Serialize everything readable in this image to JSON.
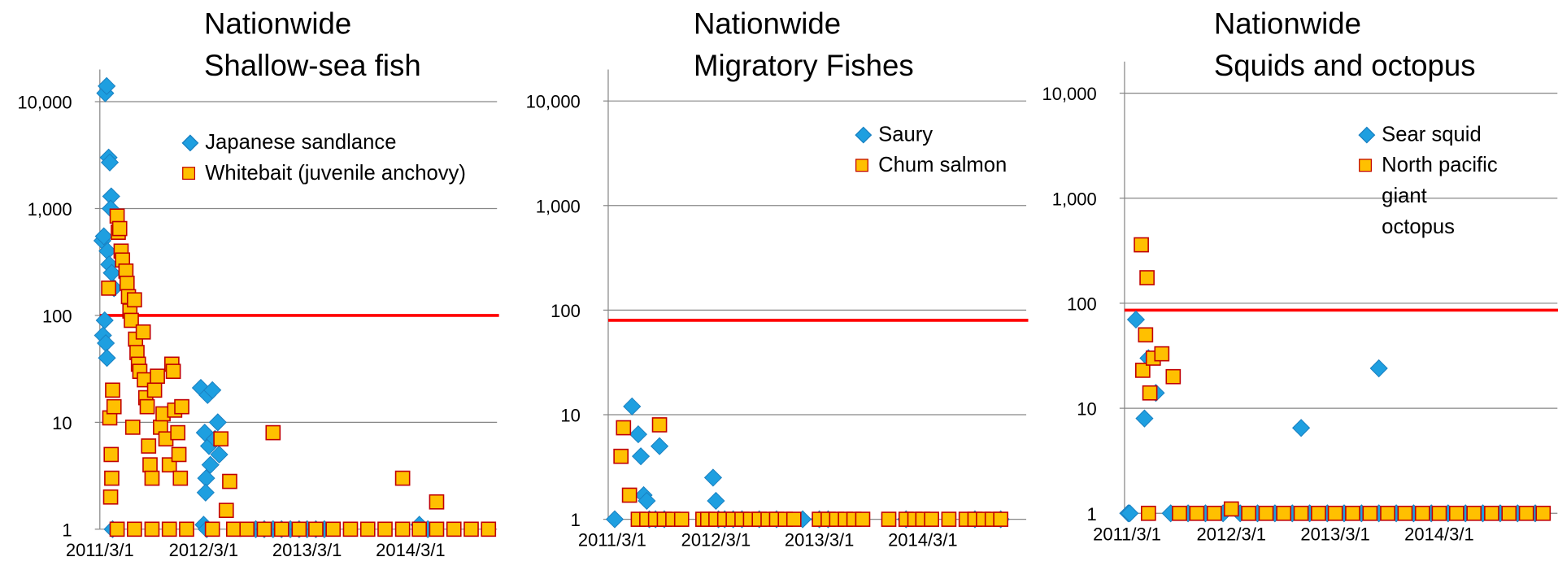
{
  "chart_data": [
    {
      "type": "scatter",
      "title": [
        "Nationwide",
        "Shallow-sea fish"
      ],
      "log_y": true,
      "grid": true,
      "legend": "upper right",
      "ylim": [
        1,
        20000
      ],
      "yticks": [
        1,
        10,
        100,
        {
          "value": 1000,
          "label": "1,000"
        },
        {
          "value": 10000,
          "label": "10,000"
        }
      ],
      "xlim": [
        "2011/3/1",
        "2014/12/31"
      ],
      "xticks": [
        "2011/3/1",
        "2012/3/1",
        "2013/3/1",
        "2014/3/1"
      ],
      "hline": {
        "value": 100,
        "color": "#ff0000"
      },
      "series": [
        {
          "name": "Japanese sandlance",
          "marker": "diamond",
          "color": "#1e9fe0",
          "x": [
            "2011/3/20",
            "2011/3/25",
            "2011/4/1",
            "2011/4/5",
            "2011/4/10",
            "2011/4/8",
            "2011/3/10",
            "2011/3/15",
            "2011/3/28",
            "2011/4/3",
            "2011/4/12",
            "2011/4/20",
            "2011/3/18",
            "2011/3/12",
            "2011/3/22",
            "2011/3/26",
            "2011/4/15",
            "2012/2/20",
            "2012/3/5",
            "2012/3/15",
            "2012/3/20",
            "2012/3/25",
            "2012/3/10",
            "2012/3/8",
            "2012/4/1",
            "2012/4/10",
            "2012/4/20",
            "2012/4/25",
            "2012/3/1",
            "2012/3/12",
            "2012/9/1",
            "2012/10/1",
            "2012/11/1",
            "2012/12/1",
            "2013/1/1",
            "2013/2/1",
            "2013/3/1",
            "2013/4/1",
            "2013/5/1",
            "2014/4/1",
            "2014/5/1"
          ],
          "values": [
            12000,
            14000,
            3000,
            2700,
            1300,
            1000,
            500,
            550,
            400,
            300,
            250,
            180,
            90,
            65,
            55,
            40,
            1,
            21,
            8,
            18,
            6,
            4,
            3,
            2.2,
            20,
            7,
            10,
            5,
            1.1,
            1,
            1,
            1,
            1,
            1,
            1,
            1,
            1,
            1,
            1,
            1.1,
            1
          ]
        },
        {
          "name": "Whitebait (juvenile anchovy)",
          "marker": "square",
          "color": "#ffc000",
          "edge": "#c00000",
          "x": [
            "2011/4/1",
            "2011/4/5",
            "2011/4/10",
            "2011/4/12",
            "2011/4/8",
            "2011/4/15",
            "2011/4/20",
            "2011/5/1",
            "2011/5/5",
            "2011/5/10",
            "2011/5/15",
            "2011/5/20",
            "2011/6/1",
            "2011/6/5",
            "2011/6/10",
            "2011/6/15",
            "2011/6/20",
            "2011/7/1",
            "2011/7/5",
            "2011/7/10",
            "2011/7/15",
            "2011/7/20",
            "2011/6/25",
            "2011/8/1",
            "2011/8/5",
            "2011/8/10",
            "2011/8/15",
            "2011/8/20",
            "2011/8/25",
            "2011/9/1",
            "2011/9/10",
            "2011/9/20",
            "2011/10/1",
            "2011/10/10",
            "2011/10/20",
            "2011/11/1",
            "2011/11/10",
            "2011/11/15",
            "2011/11/20",
            "2011/12/1",
            "2011/12/5",
            "2011/12/10",
            "2011/12/15",
            "2012/5/1",
            "2012/5/20",
            "2012/6/1",
            "2012/11/1",
            "2014/2/1",
            "2014/6/1",
            "2011/5/1",
            "2011/7/1",
            "2011/9/1",
            "2011/11/1",
            "2012/1/1",
            "2012/4/1",
            "2012/6/15",
            "2012/8/1",
            "2012/10/1",
            "2012/12/1",
            "2013/2/1",
            "2013/4/1",
            "2013/6/1",
            "2013/8/1",
            "2013/10/1",
            "2013/12/1",
            "2014/2/1",
            "2014/4/1",
            "2014/6/1",
            "2014/8/1",
            "2014/10/1",
            "2014/12/1"
          ],
          "values": [
            180,
            11,
            5,
            3,
            2,
            20,
            14,
            850,
            600,
            650,
            400,
            330,
            260,
            200,
            150,
            110,
            90,
            140,
            60,
            45,
            35,
            30,
            9,
            70,
            25,
            17,
            14,
            6,
            4,
            3,
            20,
            27,
            9,
            12,
            7,
            4,
            35,
            30,
            13,
            8,
            5,
            3,
            14,
            7,
            1.5,
            2.8,
            8,
            3,
            1.8,
            1,
            1,
            1,
            1,
            1,
            1,
            1,
            1,
            1,
            1,
            1,
            1,
            1,
            1,
            1,
            1,
            1,
            1,
            1,
            1,
            1,
            1
          ]
        }
      ]
    },
    {
      "type": "scatter",
      "title": [
        "Nationwide",
        "Migratory Fishes"
      ],
      "log_y": true,
      "grid": true,
      "legend": "upper right",
      "ylim": [
        1,
        20000
      ],
      "yticks": [
        1,
        10,
        100,
        {
          "value": 1000,
          "label": "1,000"
        },
        {
          "value": 10000,
          "label": "10,000"
        }
      ],
      "xlim": [
        "2011/2/15",
        "2015/3/1"
      ],
      "xticks": [
        "2011/3/1",
        "2012/3/1",
        "2013/3/1",
        "2014/3/1"
      ],
      "hline": {
        "value": 80,
        "color": "#ff0000"
      },
      "series": [
        {
          "name": "Saury",
          "marker": "diamond",
          "color": "#1e9fe0",
          "x": [
            "2011/3/10",
            "2011/5/10",
            "2011/6/1",
            "2011/6/10",
            "2011/6/20",
            "2011/7/1",
            "2011/8/15",
            "2011/7/10",
            "2011/8/1",
            "2011/9/1",
            "2012/2/20",
            "2012/3/1",
            "2012/3/10",
            "2012/4/1",
            "2012/5/1",
            "2012/6/1",
            "2012/8/1",
            "2012/10/1",
            "2013/1/1",
            "2013/3/1",
            "2013/4/1",
            "2014/1/1",
            "2014/9/1",
            "2014/12/1"
          ],
          "values": [
            1,
            12,
            6.5,
            4,
            1.7,
            1.5,
            5,
            1,
            1,
            1,
            2.5,
            1.5,
            1,
            1,
            1,
            1,
            1,
            1,
            1,
            1,
            1,
            1,
            1,
            1
          ]
        },
        {
          "name": "Chum salmon",
          "marker": "square",
          "color": "#ffc000",
          "edge": "#c00000",
          "x": [
            "2011/4/1",
            "2011/4/10",
            "2011/5/1",
            "2011/8/15",
            "2011/6/1",
            "2011/7/1",
            "2011/8/1",
            "2011/9/1",
            "2011/10/1",
            "2011/11/1",
            "2012/1/15",
            "2012/2/1",
            "2012/3/1",
            "2012/4/1",
            "2012/5/1",
            "2012/6/1",
            "2012/7/1",
            "2012/8/1",
            "2012/9/1",
            "2012/10/1",
            "2012/11/1",
            "2012/12/1",
            "2013/3/1",
            "2013/4/1",
            "2013/5/1",
            "2013/6/1",
            "2013/7/1",
            "2013/8/1",
            "2013/11/1",
            "2014/1/1",
            "2014/2/1",
            "2014/3/1",
            "2014/4/1",
            "2014/6/1",
            "2014/8/1",
            "2014/9/1",
            "2014/10/1",
            "2014/11/1",
            "2014/12/1"
          ],
          "values": [
            4,
            7.5,
            1.7,
            8,
            1,
            1,
            1,
            1,
            1,
            1,
            1,
            1,
            1,
            1,
            1,
            1,
            1,
            1,
            1,
            1,
            1,
            1,
            1,
            1,
            1,
            1,
            1,
            1,
            1,
            1,
            1,
            1,
            1,
            1,
            1,
            1,
            1,
            1,
            1
          ]
        }
      ]
    },
    {
      "type": "scatter",
      "title": [
        "Nationwide",
        "Squids and octopus"
      ],
      "log_y": true,
      "grid": true,
      "legend": "upper right",
      "ylim": [
        1,
        20000
      ],
      "yticks": [
        1,
        10,
        100,
        {
          "value": 1000,
          "label": "1,000"
        },
        {
          "value": 10000,
          "label": "10,000"
        }
      ],
      "xlim": [
        "2011/2/20",
        "2015/4/20"
      ],
      "xticks": [
        "2011/3/1",
        "2012/3/1",
        "2013/3/1",
        "2014/3/1"
      ],
      "hline": {
        "value": 86,
        "color": "#ff0000"
      },
      "series": [
        {
          "name": "Sear squid",
          "marker": "diamond",
          "color": "#1e9fe0",
          "x": [
            "2011/3/5",
            "2011/3/10",
            "2011/4/1",
            "2011/5/1",
            "2011/5/15",
            "2011/6/10",
            "2012/11/1",
            "2013/8/1",
            "2011/8/1",
            "2011/10/1",
            "2011/12/1",
            "2012/2/1",
            "2012/4/1",
            "2012/6/1",
            "2012/8/1",
            "2012/10/1",
            "2012/12/1",
            "2013/2/1",
            "2013/4/1",
            "2013/6/1",
            "2013/8/1",
            "2013/10/1",
            "2013/12/1",
            "2014/2/1",
            "2014/4/1",
            "2014/6/1",
            "2014/8/1",
            "2014/10/1",
            "2014/12/1",
            "2015/2/1"
          ],
          "values": [
            1,
            1,
            70,
            8,
            30,
            14,
            6.5,
            24,
            1,
            1,
            1,
            1,
            1,
            1,
            1,
            1,
            1,
            1,
            1,
            1,
            1,
            1,
            1,
            1,
            1,
            1,
            1,
            1,
            1,
            1
          ]
        },
        {
          "name": "North pacific giant octopus",
          "marker": "square",
          "color": "#ffc000",
          "edge": "#c00000",
          "x": [
            "2011/4/20",
            "2011/5/10",
            "2011/5/5",
            "2011/4/25",
            "2011/5/20",
            "2011/6/1",
            "2011/7/1",
            "2011/8/10",
            "2011/5/15",
            "2012/3/1",
            "2011/9/1",
            "2011/11/1",
            "2012/1/1",
            "2012/5/1",
            "2012/7/1",
            "2012/9/1",
            "2012/11/1",
            "2013/1/1",
            "2013/3/1",
            "2013/5/1",
            "2013/7/1",
            "2013/9/1",
            "2013/11/1",
            "2014/1/1",
            "2014/3/1",
            "2014/5/1",
            "2014/7/1",
            "2014/9/1",
            "2014/11/1",
            "2015/1/1",
            "2015/3/1"
          ],
          "values": [
            360,
            175,
            50,
            23,
            14,
            30,
            33,
            20,
            1,
            1.1,
            1,
            1,
            1,
            1,
            1,
            1,
            1,
            1,
            1,
            1,
            1,
            1,
            1,
            1,
            1,
            1,
            1,
            1,
            1,
            1,
            1
          ]
        }
      ]
    }
  ]
}
